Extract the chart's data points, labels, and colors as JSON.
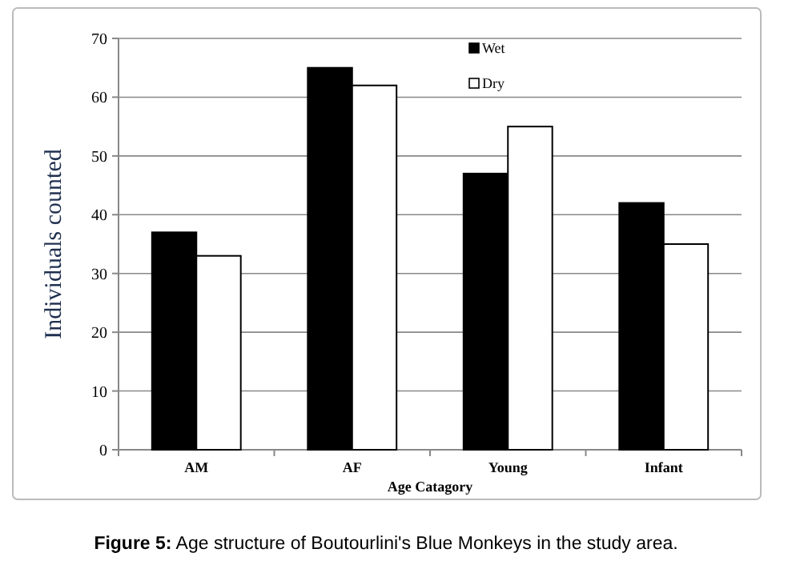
{
  "chart_data": {
    "type": "bar",
    "categories": [
      "AM",
      "AF",
      "Young",
      "Infant"
    ],
    "series": [
      {
        "name": "Wet",
        "color": "#000000",
        "values": [
          37,
          65,
          47,
          42
        ]
      },
      {
        "name": "Dry",
        "color": "#ffffff",
        "values": [
          33,
          62,
          55,
          35
        ]
      }
    ],
    "xlabel": "Age Catagory",
    "ylabel": "Individuals counted",
    "ylim": [
      0,
      70
    ],
    "yticks": [
      0,
      10,
      20,
      30,
      40,
      50,
      60,
      70
    ],
    "grid": "y",
    "legend": "top right",
    "annotations": [
      "Figure 5: Age structure of Boutourlini's Blue Monkeys in the study area."
    ]
  }
}
